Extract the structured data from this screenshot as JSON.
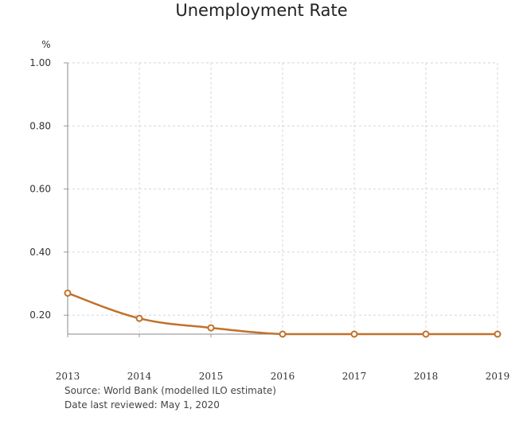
{
  "chart_data": {
    "type": "line",
    "title": "Unemployment Rate",
    "ylabel": "%",
    "xlabel": "",
    "x": [
      "2013",
      "2014",
      "2015",
      "2016",
      "2017",
      "2018",
      "2019"
    ],
    "series": [
      {
        "values": [
          0.27,
          0.19,
          0.16,
          0.14,
          0.14,
          0.14,
          0.14
        ]
      }
    ],
    "ylim": [
      0.14,
      1.0
    ],
    "y_ticks": [
      "0.20",
      "0.40",
      "0.60",
      "0.80",
      "1.00"
    ],
    "grid": true,
    "legend": "none",
    "line_color": "#c0712a"
  },
  "footer": {
    "source": "Source: World Bank (modelled ILO estimate)",
    "reviewed": "Date last reviewed: May 1, 2020"
  }
}
